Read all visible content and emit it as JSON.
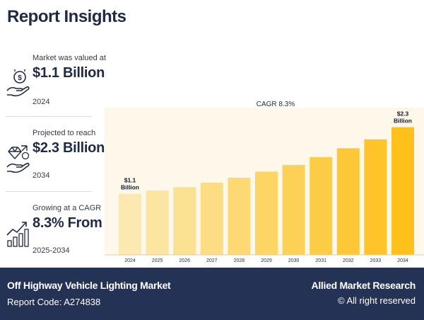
{
  "header": {
    "title": "Report Insights"
  },
  "stats": [
    {
      "label": "Market was valued at",
      "value": "$1.1 Billion",
      "year": "2024",
      "icon": "money-hand-icon"
    },
    {
      "label": "Projected to reach",
      "value": "$2.3 Billion",
      "year": "2034",
      "icon": "diamond-hand-icon"
    },
    {
      "label": "Growing at a CAGR",
      "value": "8.3% From",
      "year": "2025-2034",
      "icon": "growth-chart-icon"
    }
  ],
  "chart_data": {
    "type": "bar",
    "title": "CAGR 8.3%",
    "categories": [
      "2024",
      "2025",
      "2026",
      "2027",
      "2028",
      "2029",
      "2030",
      "2031",
      "2032",
      "2033",
      "2034"
    ],
    "values": [
      1.1,
      1.16,
      1.22,
      1.3,
      1.39,
      1.5,
      1.62,
      1.76,
      1.92,
      2.08,
      2.3
    ],
    "annotations": [
      {
        "index": 0,
        "line1": "$1.1",
        "line2": "Billion"
      },
      {
        "index": 10,
        "line1": "$2.3",
        "line2": "Billion"
      }
    ],
    "ylim": [
      0,
      2.55
    ],
    "xlabel": "",
    "ylabel": "",
    "colors": [
      "#fbe9b0",
      "#fbe5a1",
      "#fbe292",
      "#fcdd83",
      "#fcd974",
      "#fcd565",
      "#fdd056",
      "#fdcc47",
      "#fdc838",
      "#fec429",
      "#fec01a"
    ],
    "background": "#fdf8ea"
  },
  "footer": {
    "market": "Off Highway Vehicle Lighting Market",
    "report_code": "Report Code: A274838",
    "brand": "Allied Market Research",
    "rights": "© All right reserved"
  }
}
